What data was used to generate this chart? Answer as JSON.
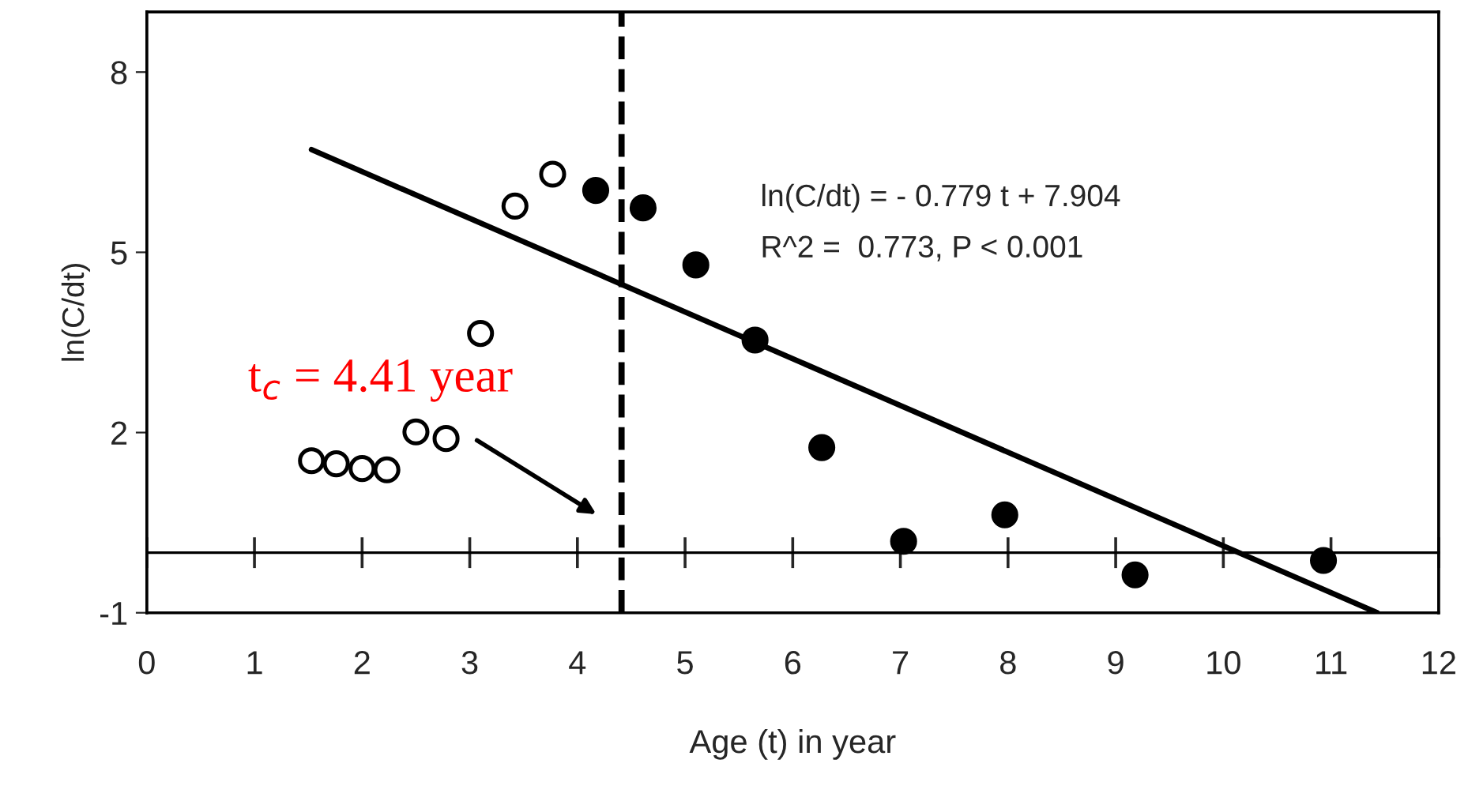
{
  "chart_data": {
    "type": "scatter",
    "xlabel": "Age (t) in year",
    "ylabel": "ln(C/dt)",
    "xlim": [
      0,
      12
    ],
    "ylim": [
      -1,
      9
    ],
    "xticks": [
      0,
      1,
      2,
      3,
      4,
      5,
      6,
      7,
      8,
      9,
      10,
      11,
      12
    ],
    "yticks": [
      -1,
      2,
      5,
      8
    ],
    "marker": "circle",
    "grid": false,
    "legend": false,
    "series": [
      {
        "color": "#ffffff",
        "x": [
          1.53,
          1.76,
          2.0,
          2.23,
          2.5,
          2.78,
          3.1,
          3.42,
          3.77
        ],
        "values": [
          1.53,
          1.48,
          1.4,
          1.38,
          2.01,
          1.9,
          3.65,
          5.77,
          6.3
        ]
      },
      {
        "color": "#000000",
        "x": [
          4.17,
          4.61,
          5.1,
          5.65,
          6.27,
          7.03,
          7.97,
          9.18,
          10.93
        ],
        "values": [
          6.03,
          5.74,
          4.79,
          3.54,
          1.75,
          0.19,
          0.63,
          -0.37,
          -0.13
        ]
      },
      {
        "type": "line",
        "marker": "none",
        "color": "#000000",
        "x": [
          1.53,
          11.43
        ],
        "values": [
          6.71,
          -1.0
        ]
      }
    ],
    "ref_lines": [
      {
        "axis": "x",
        "value": 4.41,
        "line_style": "dashed",
        "color": "#000000",
        "label": "t$_{c}$ = 4.41 year"
      },
      {
        "axis": "y",
        "value": 0,
        "line_style": "solid",
        "color": "#000000"
      }
    ],
    "annotations": [
      "ln(C/dt) = - 0.779 t + 7.904",
      "R^2 =  0.773, P < 0.001"
    ]
  }
}
